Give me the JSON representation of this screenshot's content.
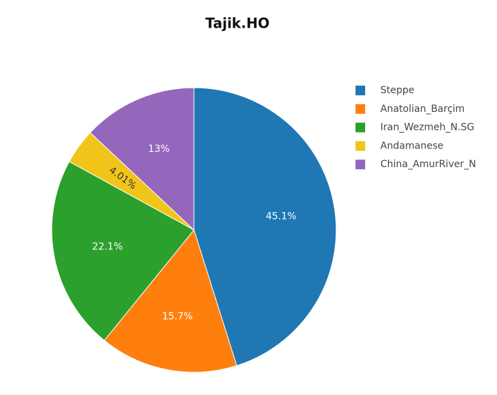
{
  "chart_data": {
    "type": "pie",
    "title": "Tajik.HO",
    "categories": [
      "Steppe",
      "Anatolian_Barçim",
      "Iran_Wezmeh_N.SG",
      "Andamanese",
      "China_AmurRiver_N"
    ],
    "values": [
      45.1,
      15.7,
      22.1,
      4.01,
      13
    ],
    "value_labels": [
      "45.1%",
      "15.7%",
      "22.1%",
      "4.01%",
      "13%"
    ],
    "colors": [
      "#1f77b4",
      "#ff7f0e",
      "#2ca02c",
      "#f1c419",
      "#9467bd"
    ],
    "legend": "right"
  }
}
